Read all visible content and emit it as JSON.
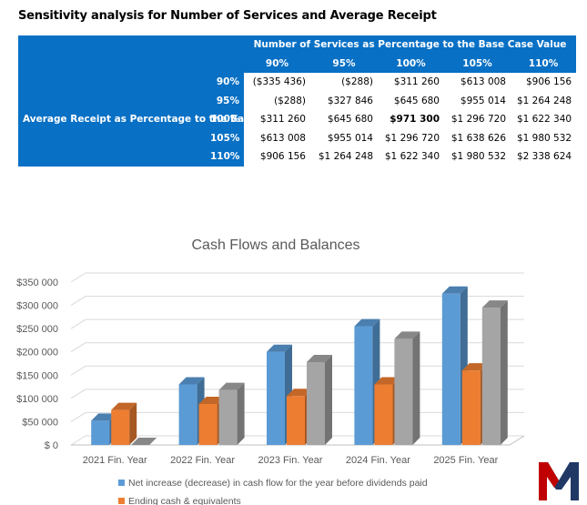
{
  "document": {
    "title": "Sensitivity analysis for Number of Services and Average Receipt"
  },
  "sensitivity_table": {
    "column_group_label": "Number of Services as Percentage to the Base Case Value",
    "row_group_label": "Average Receipt as Percentage to the Base Case Value",
    "column_headers": [
      "90%",
      "95%",
      "100%",
      "105%",
      "110%"
    ],
    "rows": [
      {
        "label": "90%",
        "values": [
          "($335 436)",
          "($288)",
          "$311 260",
          "$613 008",
          "$906 156"
        ]
      },
      {
        "label": "95%",
        "values": [
          "($288)",
          "$327 846",
          "$645 680",
          "$955 014",
          "$1 264 248"
        ]
      },
      {
        "label": "100%",
        "values": [
          "$311 260",
          "$645 680",
          "$971 300",
          "$1 296 720",
          "$1 622 340"
        ]
      },
      {
        "label": "105%",
        "values": [
          "$613 008",
          "$955 014",
          "$1 296 720",
          "$1 638 626",
          "$1 980 532"
        ]
      },
      {
        "label": "110%",
        "values": [
          "$906 156",
          "$1 264 248",
          "$1 622 340",
          "$1 980 532",
          "$2 338 624"
        ]
      }
    ],
    "colors": {
      "header_blue": "#0870c5"
    }
  },
  "chart_data": {
    "type": "bar",
    "title": "Cash Flows and Balances",
    "categories": [
      "2021 Fin. Year",
      "2022 Fin. Year",
      "2023 Fin. Year",
      "2024 Fin. Year",
      "2025 Fin. Year"
    ],
    "ytick_labels": [
      "$350 000",
      "$300 000",
      "$250 000",
      "$200 000",
      "$150 000",
      "$100 000",
      "$50 000",
      "$ 0"
    ],
    "ylim": [
      0,
      350000
    ],
    "grid": true,
    "legend_position": "bottom",
    "series": [
      {
        "name": "Net increase (decrease) in cash flow for the year before dividends paid",
        "values": [
          52000,
          130000,
          200000,
          255000,
          325000
        ],
        "color": "#5b9bd5"
      },
      {
        "name": "Ending cash & equivalents",
        "values": [
          75000,
          88000,
          105000,
          130000,
          160000
        ],
        "color": "#ed7d31"
      },
      {
        "values": [
          0,
          118000,
          178000,
          228000,
          295000
        ],
        "color": "#a5a5a5"
      }
    ]
  },
  "logo": {
    "name": "m-logo-icon"
  }
}
